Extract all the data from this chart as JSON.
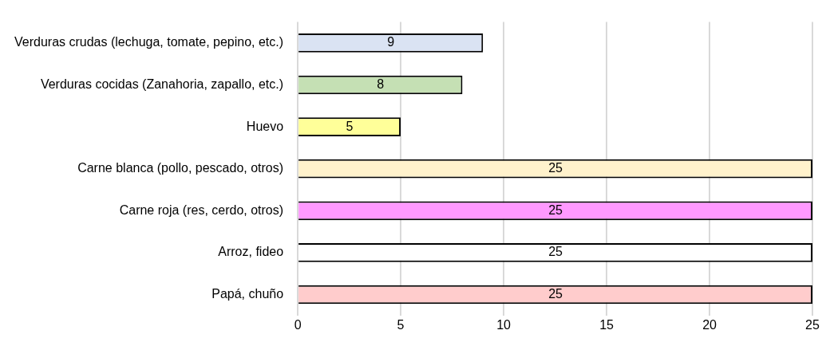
{
  "chart_data": {
    "type": "bar",
    "orientation": "horizontal",
    "categories": [
      "Verduras crudas (lechuga, tomate, pepino, etc.)",
      "Verduras cocidas (Zanahoria, zapallo, etc.)",
      "Huevo",
      "Carne blanca (pollo, pescado, otros)",
      "Carne roja (res, cerdo, otros)",
      "Arroz, fideo",
      "Papá, chuño"
    ],
    "values": [
      9,
      8,
      5,
      25,
      25,
      25,
      25
    ],
    "colors": [
      "#dae3f3",
      "#c5e0b4",
      "#ffff99",
      "#fff2cc",
      "#ff99ff",
      "#ffffff",
      "#ffcccc"
    ],
    "xlim": [
      0,
      25
    ],
    "xticks": [
      0,
      5,
      10,
      15,
      20,
      25
    ],
    "grid": "x",
    "data_labels": true,
    "legend": false
  }
}
